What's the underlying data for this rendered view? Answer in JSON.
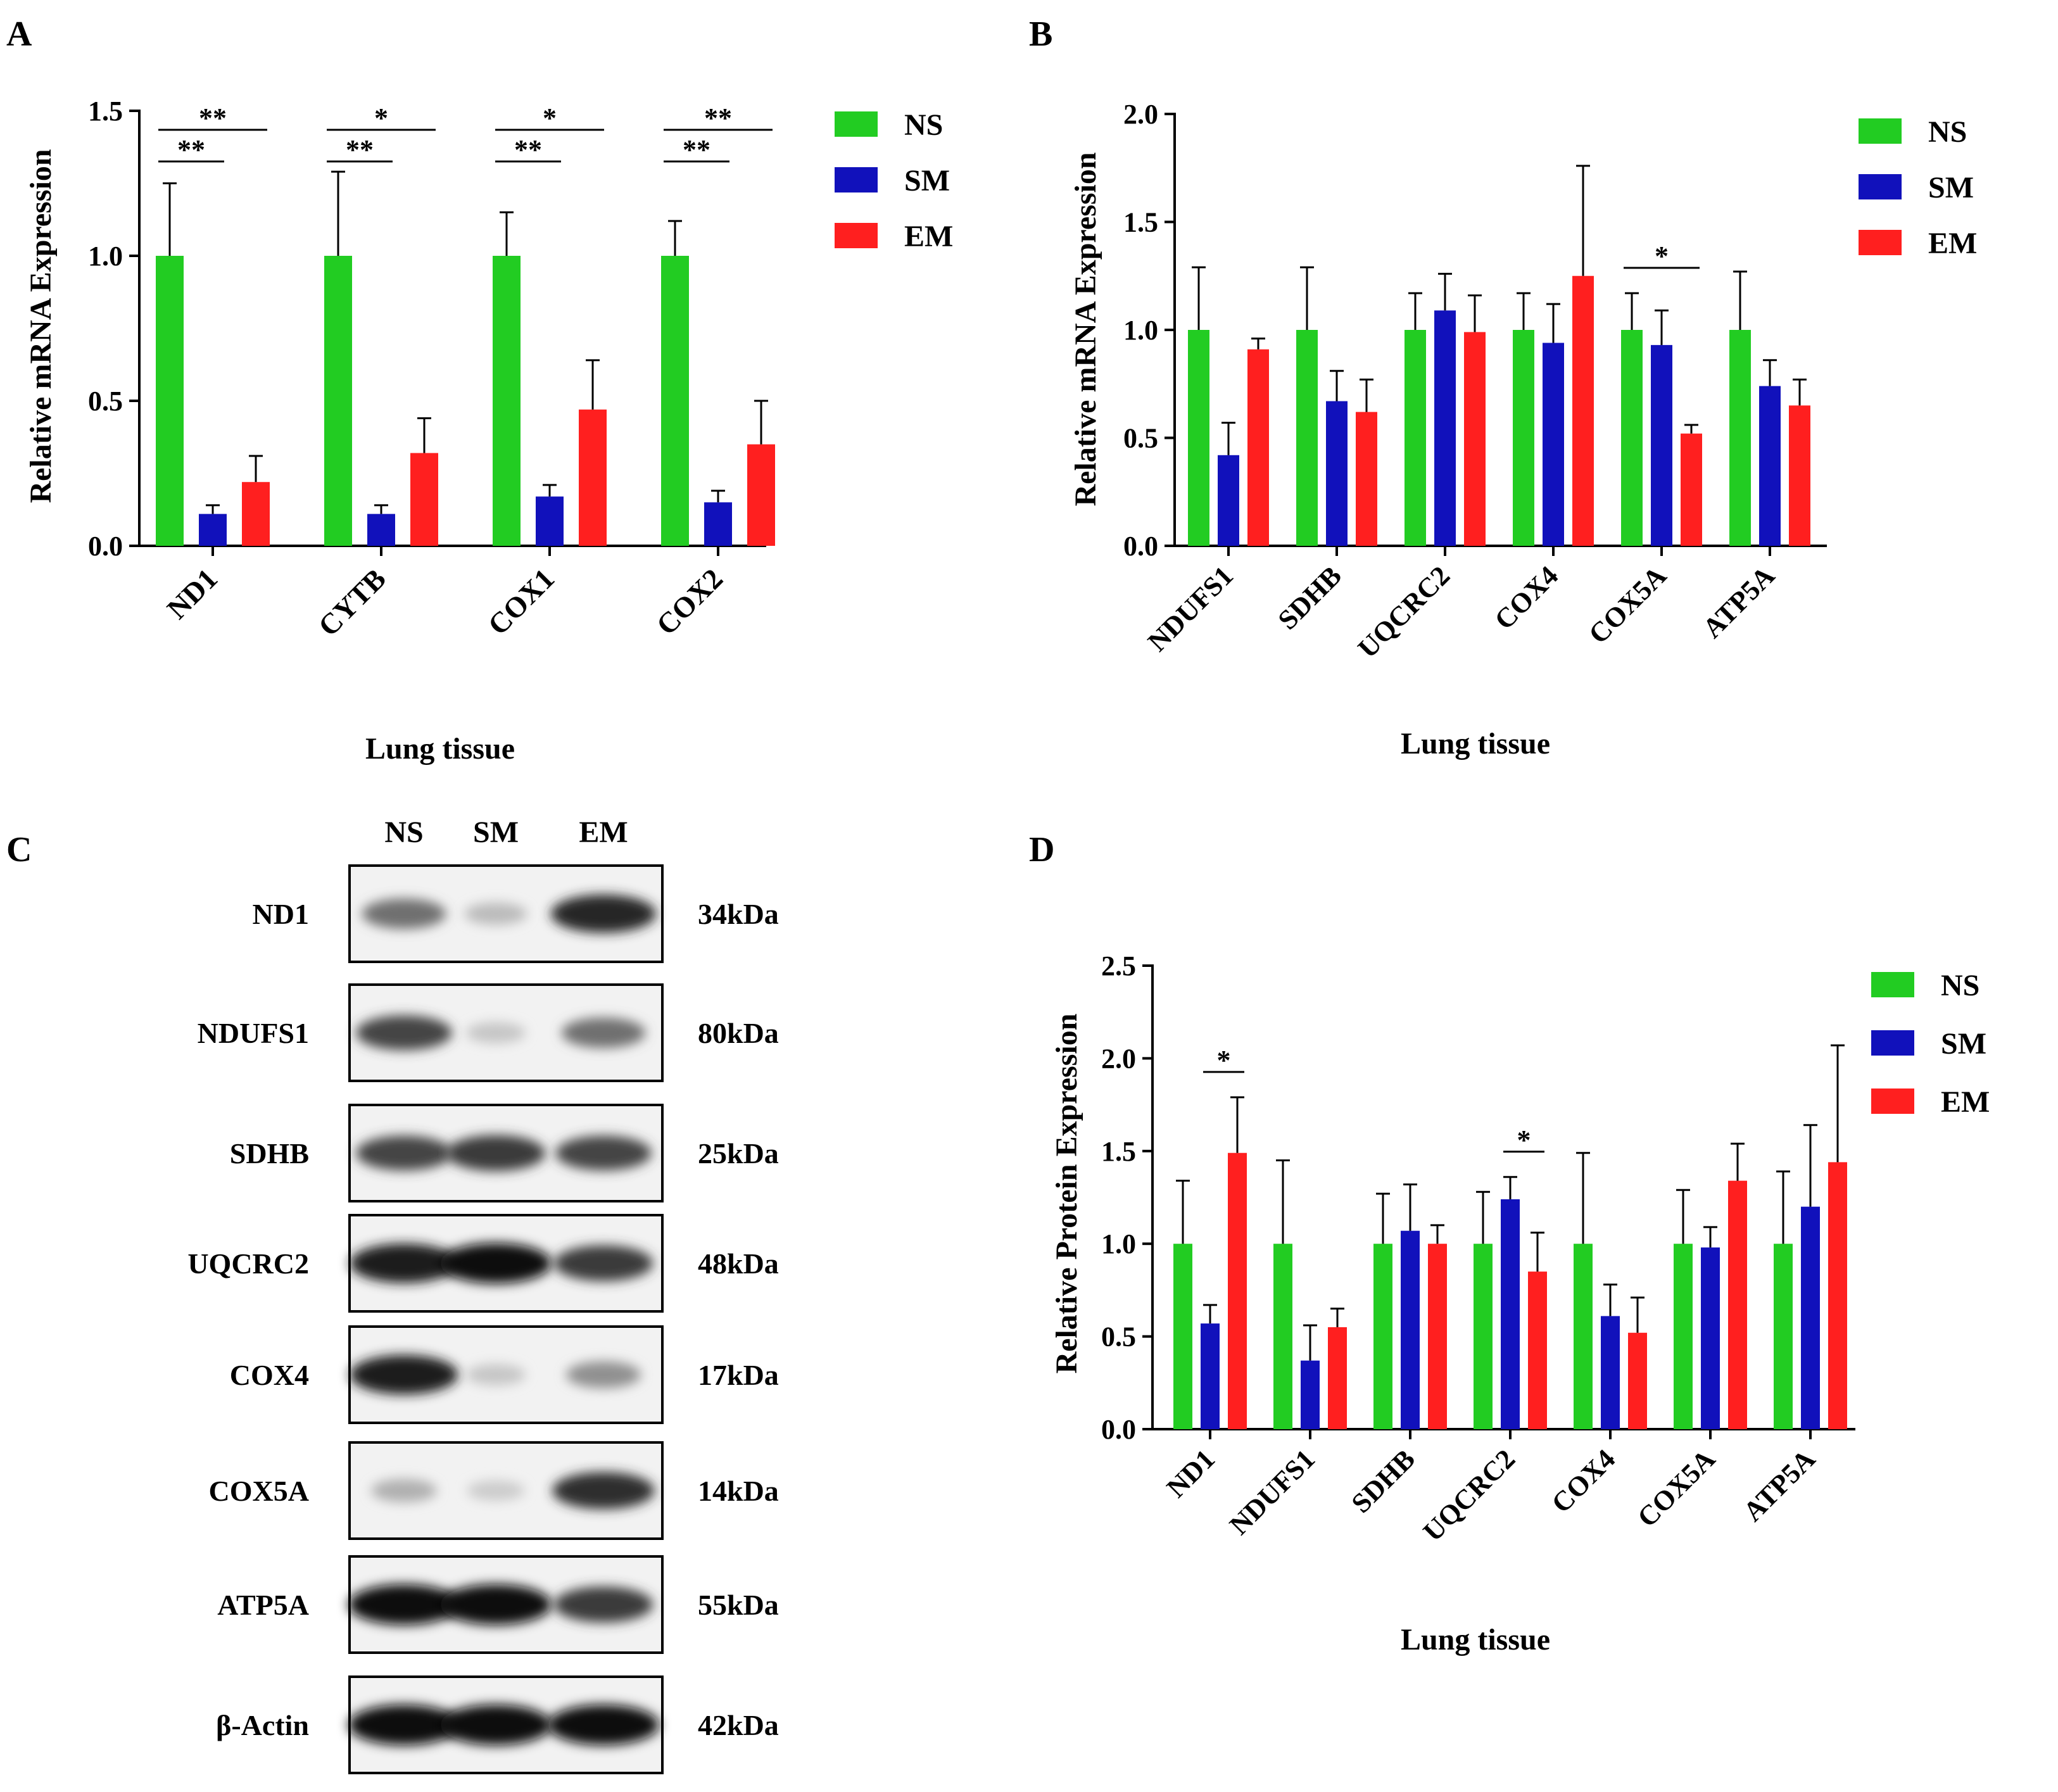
{
  "colors": {
    "NS": "#22cc22",
    "SM": "#1111bb",
    "EM": "#ff1f1f",
    "axis": "#000000"
  },
  "chart_data": [
    {
      "panel": "A",
      "type": "bar",
      "title": "",
      "xlabel": "Lung tissue",
      "ylabel": "Relative mRNA Expression",
      "ylim": [
        0,
        1.5
      ],
      "yticks": [
        "0.0",
        "0.5",
        "1.0",
        "1.5"
      ],
      "categories": [
        "ND1",
        "CYTB",
        "COX1",
        "COX2"
      ],
      "series": [
        {
          "name": "NS",
          "values": [
            1.0,
            1.0,
            1.0,
            1.0
          ],
          "errors": [
            0.25,
            0.29,
            0.15,
            0.12
          ]
        },
        {
          "name": "SM",
          "values": [
            0.11,
            0.11,
            0.17,
            0.15
          ],
          "errors": [
            0.03,
            0.03,
            0.04,
            0.04
          ]
        },
        {
          "name": "EM",
          "values": [
            0.22,
            0.32,
            0.47,
            0.35
          ],
          "errors": [
            0.09,
            0.12,
            0.17,
            0.15
          ]
        }
      ],
      "legend": [
        "NS",
        "SM",
        "EM"
      ],
      "legend_position": "top-right",
      "significance": [
        {
          "category": 0,
          "from": 0,
          "to": 1,
          "label": "**",
          "level": 0
        },
        {
          "category": 0,
          "from": 0,
          "to": 2,
          "label": "**",
          "level": 1
        },
        {
          "category": 1,
          "from": 0,
          "to": 1,
          "label": "**",
          "level": 0
        },
        {
          "category": 1,
          "from": 0,
          "to": 2,
          "label": "*",
          "level": 1
        },
        {
          "category": 2,
          "from": 0,
          "to": 1,
          "label": "**",
          "level": 0
        },
        {
          "category": 2,
          "from": 0,
          "to": 2,
          "label": "*",
          "level": 1
        },
        {
          "category": 3,
          "from": 0,
          "to": 1,
          "label": "**",
          "level": 0
        },
        {
          "category": 3,
          "from": 0,
          "to": 2,
          "label": "**",
          "level": 1
        }
      ]
    },
    {
      "panel": "B",
      "type": "bar",
      "title": "",
      "xlabel": "Lung tissue",
      "ylabel": "Relative mRNA Expression",
      "ylim": [
        0,
        2.0
      ],
      "yticks": [
        "0.0",
        "0.5",
        "1.0",
        "1.5",
        "2.0"
      ],
      "categories": [
        "NDUFS1",
        "SDHB",
        "UQCRC2",
        "COX4",
        "COX5A",
        "ATP5A"
      ],
      "series": [
        {
          "name": "NS",
          "values": [
            1.0,
            1.0,
            1.0,
            1.0,
            1.0,
            1.0
          ],
          "errors": [
            0.29,
            0.29,
            0.17,
            0.17,
            0.17,
            0.27
          ]
        },
        {
          "name": "SM",
          "values": [
            0.42,
            0.67,
            1.09,
            0.94,
            0.93,
            0.74
          ],
          "errors": [
            0.15,
            0.14,
            0.17,
            0.18,
            0.16,
            0.12
          ]
        },
        {
          "name": "EM",
          "values": [
            0.91,
            0.62,
            0.99,
            1.25,
            0.52,
            0.65
          ],
          "errors": [
            0.05,
            0.15,
            0.17,
            0.51,
            0.04,
            0.12
          ]
        }
      ],
      "legend": [
        "NS",
        "SM",
        "EM"
      ],
      "legend_position": "top-right",
      "significance": [
        {
          "category": 4,
          "from": 0,
          "to": 2,
          "label": "*",
          "level": 0
        }
      ]
    },
    {
      "panel": "D",
      "type": "bar",
      "title": "",
      "xlabel": "Lung tissue",
      "ylabel": "Relative Protein Expression",
      "ylim": [
        0,
        2.5
      ],
      "yticks": [
        "0.0",
        "0.5",
        "1.0",
        "1.5",
        "2.0",
        "2.5"
      ],
      "categories": [
        "ND1",
        "NDUFS1",
        "SDHB",
        "UQCRC2",
        "COX4",
        "COX5A",
        "ATP5A"
      ],
      "series": [
        {
          "name": "NS",
          "values": [
            1.0,
            1.0,
            1.0,
            1.0,
            1.0,
            1.0,
            1.0
          ],
          "errors": [
            0.34,
            0.45,
            0.27,
            0.28,
            0.49,
            0.29,
            0.39
          ]
        },
        {
          "name": "SM",
          "values": [
            0.57,
            0.37,
            1.07,
            1.24,
            0.61,
            0.98,
            1.2
          ],
          "errors": [
            0.1,
            0.19,
            0.25,
            0.12,
            0.17,
            0.11,
            0.44
          ]
        },
        {
          "name": "EM",
          "values": [
            1.49,
            0.55,
            1.0,
            0.85,
            0.52,
            1.34,
            1.44
          ],
          "errors": [
            0.3,
            0.1,
            0.1,
            0.21,
            0.19,
            0.2,
            0.63
          ]
        }
      ],
      "legend": [
        "NS",
        "SM",
        "EM"
      ],
      "legend_position": "top-right",
      "significance": [
        {
          "category": 0,
          "from": 1,
          "to": 2,
          "label": "*",
          "level": 0
        },
        {
          "category": 3,
          "from": 1,
          "to": 2,
          "label": "*",
          "level": 0
        }
      ]
    }
  ],
  "western": {
    "panel": "C",
    "columns": [
      "NS",
      "SM",
      "EM"
    ],
    "rows": [
      {
        "label": "ND1",
        "kda": "34kDa",
        "bands": [
          0.55,
          0.2,
          0.9
        ]
      },
      {
        "label": "NDUFS1",
        "kda": "80kDa",
        "bands": [
          0.75,
          0.15,
          0.55
        ]
      },
      {
        "label": "SDHB",
        "kda": "25kDa",
        "bands": [
          0.75,
          0.8,
          0.75
        ]
      },
      {
        "label": "UQCRC2",
        "kda": "48kDa",
        "bands": [
          0.95,
          1.0,
          0.8
        ]
      },
      {
        "label": "COX4",
        "kda": "17kDa",
        "bands": [
          0.95,
          0.15,
          0.4
        ]
      },
      {
        "label": "COX5A",
        "kda": "14kDa",
        "bands": [
          0.25,
          0.12,
          0.85
        ]
      },
      {
        "label": "ATP5A",
        "kda": "55kDa",
        "bands": [
          1.0,
          1.0,
          0.8
        ]
      },
      {
        "label": "β-Actin",
        "kda": "42kDa",
        "bands": [
          1.0,
          1.0,
          1.0
        ]
      }
    ]
  }
}
